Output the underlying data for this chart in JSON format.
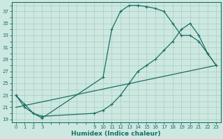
{
  "xlabel": "Humidex (Indice chaleur)",
  "bg_color": "#cce8e0",
  "grid_color": "#aaccc4",
  "line_color": "#1a6e64",
  "xlim": [
    -0.5,
    23.5
  ],
  "ylim": [
    18.5,
    38.5
  ],
  "xticks": [
    0,
    1,
    2,
    3,
    9,
    10,
    11,
    12,
    13,
    14,
    15,
    16,
    17,
    18,
    19,
    20,
    21,
    22,
    23
  ],
  "yticks": [
    19,
    21,
    23,
    25,
    27,
    29,
    31,
    33,
    35,
    37
  ],
  "line1_x": [
    0,
    1,
    2,
    3,
    10,
    11,
    12,
    13,
    14,
    15,
    16,
    17,
    18,
    19,
    20,
    21,
    22,
    23
  ],
  "line1_y": [
    23,
    21,
    20,
    19.2,
    26,
    34,
    37,
    38,
    38,
    37.8,
    37.5,
    37,
    35,
    33,
    33,
    32,
    30,
    28
  ],
  "line2_x": [
    0,
    1,
    2,
    3,
    9,
    10,
    11,
    12,
    13,
    14,
    15,
    16,
    17,
    18,
    19,
    20,
    21,
    22,
    23
  ],
  "line2_y": [
    23,
    21.5,
    20,
    19.5,
    20,
    20.5,
    21.5,
    23,
    25,
    27,
    28,
    29,
    30.5,
    32,
    34,
    35,
    33,
    30,
    28
  ],
  "line3_x": [
    0,
    23
  ],
  "line3_y": [
    21,
    28
  ],
  "marker_x1": [
    0,
    1,
    2,
    3,
    10,
    11,
    12,
    13,
    14,
    15,
    16,
    17,
    18,
    19,
    20,
    21,
    22,
    23
  ],
  "marker_y1": [
    23,
    21,
    20,
    19.2,
    26,
    34,
    37,
    38,
    38,
    37.8,
    37.5,
    37,
    35,
    33,
    33,
    32,
    30,
    28
  ],
  "marker_x2": [
    0,
    1,
    2,
    3,
    9,
    10,
    11,
    12,
    13,
    14,
    15,
    16,
    17,
    18,
    19,
    20,
    21,
    22,
    23
  ],
  "marker_y2": [
    23,
    21.5,
    20,
    19.5,
    20,
    20.5,
    21.5,
    23,
    25,
    27,
    28,
    29,
    30.5,
    32,
    34,
    35,
    33,
    30,
    28
  ]
}
